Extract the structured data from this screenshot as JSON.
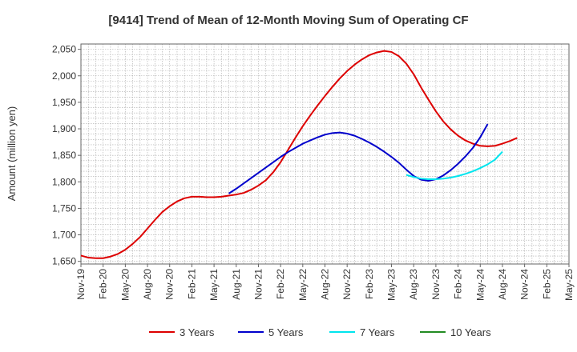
{
  "chart_data": {
    "type": "line",
    "title": "[9414]  Trend of Mean of 12-Month Moving Sum of Operating CF",
    "xlabel": "",
    "ylabel": "Amount (million yen)",
    "ylim": [
      1645,
      2060
    ],
    "yticks": [
      1650,
      1700,
      1750,
      1800,
      1850,
      1900,
      1950,
      2000,
      2050
    ],
    "ytick_labels": [
      "1,650",
      "1,700",
      "1,750",
      "1,800",
      "1,850",
      "1,900",
      "1,950",
      "2,000",
      "2,050"
    ],
    "x_month_count": 67,
    "xtick_labels": [
      "Nov-19",
      "Feb-20",
      "May-20",
      "Aug-20",
      "Nov-20",
      "Feb-21",
      "May-21",
      "Aug-21",
      "Nov-21",
      "Feb-22",
      "May-22",
      "Aug-22",
      "Nov-22",
      "Feb-23",
      "May-23",
      "Aug-23",
      "Nov-23",
      "Feb-24",
      "May-24",
      "Aug-24",
      "Nov-24",
      "Feb-25",
      "May-25"
    ],
    "grid": true,
    "legend_position": "bottom",
    "series": [
      {
        "name": "3 Years",
        "color": "#dd0000",
        "start_index": 0,
        "values": [
          1661,
          1657,
          1656,
          1656,
          1659,
          1664,
          1672,
          1683,
          1696,
          1712,
          1728,
          1743,
          1754,
          1763,
          1769,
          1772,
          1772,
          1771,
          1771,
          1772,
          1774,
          1776,
          1779,
          1785,
          1793,
          1803,
          1818,
          1837,
          1860,
          1883,
          1905,
          1925,
          1944,
          1962,
          1979,
          1995,
          2009,
          2021,
          2031,
          2039,
          2044,
          2047,
          2045,
          2037,
          2023,
          2003,
          1978,
          1955,
          1933,
          1914,
          1899,
          1887,
          1878,
          1872,
          1868,
          1867,
          1868,
          1872,
          1877,
          1883
        ]
      },
      {
        "name": "5 Years",
        "color": "#0000cc",
        "start_index": 20,
        "values": [
          1778,
          1787,
          1797,
          1807,
          1817,
          1827,
          1837,
          1847,
          1856,
          1864,
          1872,
          1878,
          1884,
          1889,
          1892,
          1893,
          1891,
          1887,
          1881,
          1874,
          1866,
          1857,
          1847,
          1836,
          1823,
          1811,
          1804,
          1802,
          1805,
          1812,
          1822,
          1834,
          1848,
          1864,
          1884,
          1909
        ]
      },
      {
        "name": "7 Years",
        "color": "#00e5ee",
        "start_index": 44,
        "values": [
          1813,
          1809,
          1806,
          1805,
          1805,
          1806,
          1808,
          1811,
          1815,
          1820,
          1826,
          1833,
          1842,
          1857
        ]
      },
      {
        "name": "10 Years",
        "color": "#228b22",
        "start_index": 0,
        "values": []
      }
    ]
  }
}
